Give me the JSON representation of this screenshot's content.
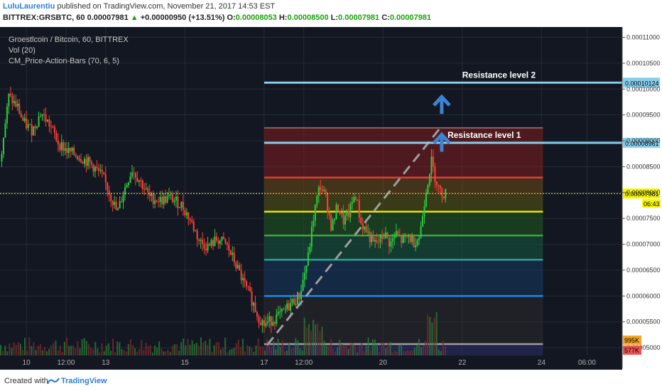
{
  "header": {
    "author": "LuluLaurentiu",
    "published": "published on TradingView.com, November 21, 2017 14:53 EST"
  },
  "ohlc": {
    "symbol": "BITTREX:GRSBTC, 60",
    "last": "0.00007981",
    "arrow": "▲",
    "change": "+0.00000950 (+13.51%)",
    "o_label": "O:",
    "o": "0.00008053",
    "h_label": "H:",
    "h": "0.00008500",
    "l_label": "L:",
    "l": "0.00007981",
    "c_label": "C:",
    "c": "0.00007981"
  },
  "indicators": {
    "main": "Groestlcoin / Bitcoin, 60, BITTREX",
    "vol": "Vol (20)",
    "cm": "CM_Price-Action-Bars (70, 6, 5)"
  },
  "footer": {
    "created": "Created with",
    "brand": "TradingView"
  },
  "colors": {
    "background": "#131722",
    "up": "#2ecc40",
    "down": "#ff4136",
    "resistance": "#87ceeb",
    "price_line": "#f5f500",
    "arrow": "#3d82d4"
  },
  "chart_data": {
    "type": "candlestick",
    "title": "Groestlcoin / Bitcoin, 60, BITTREX",
    "ylim": [
      4.85e-05,
      0.000112
    ],
    "y_ticks": [
      "0.00011000",
      "0.00010500",
      "0.00010000",
      "0.00009500",
      "0.00009000",
      "0.00008500",
      "0.00008000",
      "0.00007500",
      "0.00007000",
      "0.00006500",
      "0.00006000",
      "0.00005500",
      "0.00005000"
    ],
    "x_ticks": [
      {
        "label": "10",
        "t": 9.0
      },
      {
        "label": "12:00",
        "t": 22.5
      },
      {
        "label": "13",
        "t": 36.0
      },
      {
        "label": "15",
        "t": 63.0
      },
      {
        "label": "17",
        "t": 90.0
      },
      {
        "label": "12:00",
        "t": 103.5
      },
      {
        "label": "20",
        "t": 130.5
      },
      {
        "label": "22",
        "t": 157.5
      },
      {
        "label": "24",
        "t": 184.5
      },
      {
        "label": "06:00",
        "t": 200.0
      }
    ],
    "price_path": [
      {
        "t": 0,
        "p": 8.6e-05
      },
      {
        "t": 3,
        "p": 9.85e-05
      },
      {
        "t": 6,
        "p": 9.65e-05
      },
      {
        "t": 8,
        "p": 9.35e-05
      },
      {
        "t": 11,
        "p": 9.2e-05
      },
      {
        "t": 14,
        "p": 9.55e-05
      },
      {
        "t": 17,
        "p": 9.3e-05
      },
      {
        "t": 20,
        "p": 8.95e-05
      },
      {
        "t": 23,
        "p": 8.8e-05
      },
      {
        "t": 27,
        "p": 8.7e-05
      },
      {
        "t": 31,
        "p": 8.55e-05
      },
      {
        "t": 35,
        "p": 8.3e-05
      },
      {
        "t": 38,
        "p": 7.9e-05
      },
      {
        "t": 40,
        "p": 7.6e-05
      },
      {
        "t": 42,
        "p": 8e-05
      },
      {
        "t": 45,
        "p": 8.45e-05
      },
      {
        "t": 48,
        "p": 8.2e-05
      },
      {
        "t": 51,
        "p": 7.9e-05
      },
      {
        "t": 55,
        "p": 7.85e-05
      },
      {
        "t": 58,
        "p": 7.9e-05
      },
      {
        "t": 62,
        "p": 7.75e-05
      },
      {
        "t": 65,
        "p": 7.45e-05
      },
      {
        "t": 68,
        "p": 7.05e-05
      },
      {
        "t": 71,
        "p": 6.95e-05
      },
      {
        "t": 74,
        "p": 7.1e-05
      },
      {
        "t": 77,
        "p": 7e-05
      },
      {
        "t": 80,
        "p": 6.65e-05
      },
      {
        "t": 83,
        "p": 6.25e-05
      },
      {
        "t": 86,
        "p": 5.9e-05
      },
      {
        "t": 88,
        "p": 5.6e-05
      },
      {
        "t": 90,
        "p": 5.45e-05
      },
      {
        "t": 93,
        "p": 5.55e-05
      },
      {
        "t": 96,
        "p": 5.65e-05
      },
      {
        "t": 99,
        "p": 5.85e-05
      },
      {
        "t": 102,
        "p": 6e-05
      },
      {
        "t": 105,
        "p": 6.75e-05
      },
      {
        "t": 107,
        "p": 7.6e-05
      },
      {
        "t": 109,
        "p": 8.15e-05
      },
      {
        "t": 111,
        "p": 7.9e-05
      },
      {
        "t": 113,
        "p": 7.3e-05
      },
      {
        "t": 115,
        "p": 7.75e-05
      },
      {
        "t": 117,
        "p": 7.45e-05
      },
      {
        "t": 119,
        "p": 7.6e-05
      },
      {
        "t": 121,
        "p": 8e-05
      },
      {
        "t": 123,
        "p": 7.4e-05
      },
      {
        "t": 125,
        "p": 7.25e-05
      },
      {
        "t": 127,
        "p": 7e-05
      },
      {
        "t": 129,
        "p": 7.05e-05
      },
      {
        "t": 131,
        "p": 7.2e-05
      },
      {
        "t": 133,
        "p": 7e-05
      },
      {
        "t": 135,
        "p": 7.2e-05
      },
      {
        "t": 137,
        "p": 7.05e-05
      },
      {
        "t": 139,
        "p": 7.15e-05
      },
      {
        "t": 141,
        "p": 7.05e-05
      },
      {
        "t": 143,
        "p": 7.15e-05
      },
      {
        "t": 145,
        "p": 8e-05
      },
      {
        "t": 147,
        "p": 8.6e-05
      },
      {
        "t": 148,
        "p": 8.35e-05
      },
      {
        "t": 150,
        "p": 8e-05
      },
      {
        "t": 152,
        "p": 7.98e-05
      }
    ],
    "volume_profile": "low",
    "zones": [
      {
        "low": 8.29e-05,
        "high": 9.25e-05,
        "color": "#7f1d1d"
      },
      {
        "low": 7.93e-05,
        "high": 8.29e-05,
        "color": "#6b4a14"
      },
      {
        "low": 7.63e-05,
        "high": 7.93e-05,
        "color": "#5a5a10"
      },
      {
        "low": 7.17e-05,
        "high": 7.63e-05,
        "color": "#1f5a1f"
      },
      {
        "low": 6.7e-05,
        "high": 7.17e-05,
        "color": "#145a3c"
      },
      {
        "low": 6e-05,
        "high": 6.7e-05,
        "color": "#16395f"
      },
      {
        "low": 5.07e-05,
        "high": 6e-05,
        "color": "#2a2a2a"
      },
      {
        "low": 4.85e-05,
        "high": 5.07e-05,
        "color": "#2d2d6b"
      }
    ],
    "fib_lines": [
      {
        "price": 8.29e-05,
        "color": "#e53935"
      },
      {
        "price": 7.63e-05,
        "color": "#e6e600"
      },
      {
        "price": 7.17e-05,
        "color": "#43a047"
      },
      {
        "price": 6.7e-05,
        "color": "#26a69a"
      },
      {
        "price": 6e-05,
        "color": "#1e88e5"
      },
      {
        "price": 5.07e-05,
        "color": "#9e9e9e"
      }
    ],
    "zone_start_t": 90,
    "zone_end_t": 185,
    "resistance": [
      {
        "label": "Resistance level 1",
        "price": 8.961e-05,
        "tag": "0.00008961"
      },
      {
        "label": "Resistance level 2",
        "price": 0.00010124,
        "tag": "0.00010124"
      }
    ],
    "current_price": {
      "price": 7.981e-05,
      "tag": "0.00007981",
      "countdown": "06:43"
    },
    "volume_tags": [
      {
        "label": "995K",
        "color": "#f5a623"
      },
      {
        "label": "577K",
        "color": "#ef5350"
      }
    ]
  }
}
